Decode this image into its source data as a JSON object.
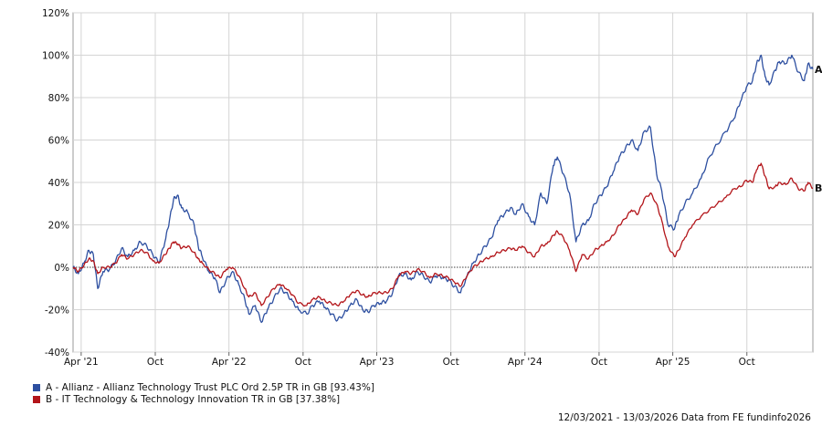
{
  "chart_data": {
    "type": "line",
    "ylim": [
      -40,
      120
    ],
    "y_ticks": [
      -40,
      -20,
      0,
      20,
      40,
      60,
      80,
      100,
      120
    ],
    "y_tick_labels": [
      "-40%",
      "-20%",
      "0%",
      "20%",
      "40%",
      "60%",
      "80%",
      "100%",
      "120%"
    ],
    "xlim": [
      "2021-03-12",
      "2026-03-13"
    ],
    "x_ticks": [
      "2021-04-01",
      "2021-10-01",
      "2022-04-01",
      "2022-10-01",
      "2023-04-01",
      "2023-10-01",
      "2024-04-01",
      "2024-10-01",
      "2025-04-01",
      "2025-10-01"
    ],
    "x_tick_labels": [
      "Apr '21",
      "Oct",
      "Apr '22",
      "Oct",
      "Apr '23",
      "Oct",
      "Apr '24",
      "Oct",
      "Apr '25",
      "Oct"
    ],
    "grid": true,
    "zero_line": "dotted",
    "legend_position": "bottom-left",
    "series": [
      {
        "name": "A - Allianz - Allianz Technology Trust PLC Ord 2.5P TR in GB [93.43%]",
        "end_label": "A",
        "color": "#2d4fa0",
        "points": [
          [
            "2021-03-12",
            0
          ],
          [
            "2021-03-25",
            -3
          ],
          [
            "2021-04-08",
            2
          ],
          [
            "2021-04-20",
            8
          ],
          [
            "2021-05-01",
            6
          ],
          [
            "2021-05-12",
            -10
          ],
          [
            "2021-05-25",
            -2
          ],
          [
            "2021-06-10",
            -1
          ],
          [
            "2021-06-25",
            3
          ],
          [
            "2021-07-10",
            9
          ],
          [
            "2021-07-25",
            5
          ],
          [
            "2021-08-10",
            8
          ],
          [
            "2021-08-25",
            12
          ],
          [
            "2021-09-10",
            10
          ],
          [
            "2021-09-25",
            6
          ],
          [
            "2021-10-10",
            2
          ],
          [
            "2021-10-25",
            12
          ],
          [
            "2021-11-05",
            22
          ],
          [
            "2021-11-15",
            32
          ],
          [
            "2021-11-25",
            34
          ],
          [
            "2021-12-05",
            28
          ],
          [
            "2021-12-20",
            26
          ],
          [
            "2022-01-05",
            20
          ],
          [
            "2022-01-15",
            10
          ],
          [
            "2022-01-25",
            5
          ],
          [
            "2022-02-10",
            -2
          ],
          [
            "2022-02-25",
            -5
          ],
          [
            "2022-03-10",
            -12
          ],
          [
            "2022-03-25",
            -6
          ],
          [
            "2022-04-10",
            -2
          ],
          [
            "2022-04-25",
            -8
          ],
          [
            "2022-05-10",
            -15
          ],
          [
            "2022-05-20",
            -22
          ],
          [
            "2022-06-05",
            -18
          ],
          [
            "2022-06-20",
            -26
          ],
          [
            "2022-07-05",
            -20
          ],
          [
            "2022-07-20",
            -15
          ],
          [
            "2022-08-05",
            -10
          ],
          [
            "2022-08-20",
            -12
          ],
          [
            "2022-09-05",
            -16
          ],
          [
            "2022-09-20",
            -20
          ],
          [
            "2022-10-10",
            -22
          ],
          [
            "2022-10-25",
            -18
          ],
          [
            "2022-11-10",
            -16
          ],
          [
            "2022-11-25",
            -19
          ],
          [
            "2022-12-10",
            -22
          ],
          [
            "2022-12-25",
            -25
          ],
          [
            "2023-01-10",
            -22
          ],
          [
            "2023-01-25",
            -18
          ],
          [
            "2023-02-10",
            -15
          ],
          [
            "2023-02-25",
            -20
          ],
          [
            "2023-03-10",
            -21
          ],
          [
            "2023-03-25",
            -18
          ],
          [
            "2023-04-10",
            -17
          ],
          [
            "2023-04-25",
            -16
          ],
          [
            "2023-05-10",
            -12
          ],
          [
            "2023-05-25",
            -4
          ],
          [
            "2023-06-10",
            -3
          ],
          [
            "2023-06-25",
            -6
          ],
          [
            "2023-07-10",
            -2
          ],
          [
            "2023-07-25",
            -4
          ],
          [
            "2023-08-10",
            -7
          ],
          [
            "2023-08-25",
            -4
          ],
          [
            "2023-09-10",
            -5
          ],
          [
            "2023-09-25",
            -6
          ],
          [
            "2023-10-10",
            -9
          ],
          [
            "2023-10-25",
            -12
          ],
          [
            "2023-11-10",
            -4
          ],
          [
            "2023-11-25",
            2
          ],
          [
            "2023-12-10",
            6
          ],
          [
            "2023-12-25",
            10
          ],
          [
            "2024-01-10",
            14
          ],
          [
            "2024-01-25",
            22
          ],
          [
            "2024-02-10",
            25
          ],
          [
            "2024-02-25",
            28
          ],
          [
            "2024-03-10",
            25
          ],
          [
            "2024-03-25",
            30
          ],
          [
            "2024-04-10",
            24
          ],
          [
            "2024-04-25",
            20
          ],
          [
            "2024-05-10",
            35
          ],
          [
            "2024-05-25",
            30
          ],
          [
            "2024-06-10",
            48
          ],
          [
            "2024-06-20",
            52
          ],
          [
            "2024-07-05",
            44
          ],
          [
            "2024-07-20",
            35
          ],
          [
            "2024-08-05",
            12
          ],
          [
            "2024-08-20",
            20
          ],
          [
            "2024-09-05",
            22
          ],
          [
            "2024-09-20",
            30
          ],
          [
            "2024-10-05",
            34
          ],
          [
            "2024-10-20",
            38
          ],
          [
            "2024-11-05",
            45
          ],
          [
            "2024-11-20",
            52
          ],
          [
            "2024-12-05",
            56
          ],
          [
            "2024-12-20",
            60
          ],
          [
            "2025-01-05",
            55
          ],
          [
            "2025-01-20",
            64
          ],
          [
            "2025-02-05",
            66
          ],
          [
            "2025-02-20",
            44
          ],
          [
            "2025-03-05",
            36
          ],
          [
            "2025-03-20",
            20
          ],
          [
            "2025-04-05",
            18
          ],
          [
            "2025-04-15",
            24
          ],
          [
            "2025-05-01",
            30
          ],
          [
            "2025-05-20",
            35
          ],
          [
            "2025-06-10",
            42
          ],
          [
            "2025-06-30",
            52
          ],
          [
            "2025-07-20",
            58
          ],
          [
            "2025-08-10",
            64
          ],
          [
            "2025-08-30",
            70
          ],
          [
            "2025-09-15",
            78
          ],
          [
            "2025-09-30",
            85
          ],
          [
            "2025-10-15",
            88
          ],
          [
            "2025-10-25",
            96
          ],
          [
            "2025-11-05",
            100
          ],
          [
            "2025-11-15",
            90
          ],
          [
            "2025-11-25",
            86
          ],
          [
            "2025-12-10",
            93
          ],
          [
            "2025-12-20",
            97
          ],
          [
            "2026-01-05",
            96
          ],
          [
            "2026-01-20",
            100
          ],
          [
            "2026-02-05",
            92
          ],
          [
            "2026-02-20",
            88
          ],
          [
            "2026-03-01",
            96
          ],
          [
            "2026-03-13",
            93.43
          ]
        ]
      },
      {
        "name": "B - IT Technology & Technology Innovation TR in GB [37.38%]",
        "end_label": "B",
        "color": "#b3151a",
        "points": [
          [
            "2021-03-12",
            0
          ],
          [
            "2021-03-25",
            -2
          ],
          [
            "2021-04-08",
            1
          ],
          [
            "2021-04-20",
            4
          ],
          [
            "2021-05-01",
            3
          ],
          [
            "2021-05-12",
            -3
          ],
          [
            "2021-05-25",
            0
          ],
          [
            "2021-06-10",
            0
          ],
          [
            "2021-06-25",
            2
          ],
          [
            "2021-07-10",
            6
          ],
          [
            "2021-07-25",
            4
          ],
          [
            "2021-08-10",
            6
          ],
          [
            "2021-08-25",
            8
          ],
          [
            "2021-09-10",
            7
          ],
          [
            "2021-09-25",
            3
          ],
          [
            "2021-10-10",
            2
          ],
          [
            "2021-10-25",
            6
          ],
          [
            "2021-11-05",
            9
          ],
          [
            "2021-11-15",
            12
          ],
          [
            "2021-11-25",
            11
          ],
          [
            "2021-12-05",
            9
          ],
          [
            "2021-12-20",
            10
          ],
          [
            "2022-01-05",
            7
          ],
          [
            "2022-01-15",
            4
          ],
          [
            "2022-01-25",
            2
          ],
          [
            "2022-02-10",
            -1
          ],
          [
            "2022-02-25",
            -3
          ],
          [
            "2022-03-10",
            -5
          ],
          [
            "2022-03-25",
            -1
          ],
          [
            "2022-04-10",
            0
          ],
          [
            "2022-04-25",
            -4
          ],
          [
            "2022-05-10",
            -10
          ],
          [
            "2022-05-20",
            -14
          ],
          [
            "2022-06-05",
            -12
          ],
          [
            "2022-06-20",
            -18
          ],
          [
            "2022-07-05",
            -14
          ],
          [
            "2022-07-20",
            -10
          ],
          [
            "2022-08-05",
            -8
          ],
          [
            "2022-08-20",
            -10
          ],
          [
            "2022-09-05",
            -13
          ],
          [
            "2022-09-20",
            -17
          ],
          [
            "2022-10-10",
            -18
          ],
          [
            "2022-10-25",
            -15
          ],
          [
            "2022-11-10",
            -14
          ],
          [
            "2022-11-25",
            -16
          ],
          [
            "2022-12-10",
            -17
          ],
          [
            "2022-12-25",
            -18
          ],
          [
            "2023-01-10",
            -16
          ],
          [
            "2023-01-25",
            -13
          ],
          [
            "2023-02-10",
            -11
          ],
          [
            "2023-02-25",
            -13
          ],
          [
            "2023-03-10",
            -14
          ],
          [
            "2023-03-25",
            -12
          ],
          [
            "2023-04-10",
            -12
          ],
          [
            "2023-04-25",
            -12
          ],
          [
            "2023-05-10",
            -10
          ],
          [
            "2023-05-25",
            -4
          ],
          [
            "2023-06-10",
            -2
          ],
          [
            "2023-06-25",
            -3
          ],
          [
            "2023-07-10",
            -1
          ],
          [
            "2023-07-25",
            -2
          ],
          [
            "2023-08-10",
            -5
          ],
          [
            "2023-08-25",
            -3
          ],
          [
            "2023-09-10",
            -4
          ],
          [
            "2023-09-25",
            -5
          ],
          [
            "2023-10-10",
            -7
          ],
          [
            "2023-10-25",
            -9
          ],
          [
            "2023-11-10",
            -4
          ],
          [
            "2023-11-25",
            0
          ],
          [
            "2023-12-10",
            2
          ],
          [
            "2023-12-25",
            4
          ],
          [
            "2024-01-10",
            5
          ],
          [
            "2024-01-25",
            7
          ],
          [
            "2024-02-10",
            8
          ],
          [
            "2024-02-25",
            9
          ],
          [
            "2024-03-10",
            8
          ],
          [
            "2024-03-25",
            10
          ],
          [
            "2024-04-10",
            7
          ],
          [
            "2024-04-25",
            5
          ],
          [
            "2024-05-10",
            10
          ],
          [
            "2024-05-25",
            11
          ],
          [
            "2024-06-10",
            15
          ],
          [
            "2024-06-20",
            17
          ],
          [
            "2024-07-05",
            14
          ],
          [
            "2024-07-20",
            8
          ],
          [
            "2024-08-05",
            -2
          ],
          [
            "2024-08-20",
            6
          ],
          [
            "2024-09-05",
            4
          ],
          [
            "2024-09-20",
            8
          ],
          [
            "2024-10-05",
            10
          ],
          [
            "2024-10-20",
            12
          ],
          [
            "2024-11-05",
            15
          ],
          [
            "2024-11-20",
            20
          ],
          [
            "2024-12-05",
            23
          ],
          [
            "2024-12-20",
            27
          ],
          [
            "2025-01-05",
            25
          ],
          [
            "2025-01-20",
            32
          ],
          [
            "2025-02-05",
            35
          ],
          [
            "2025-02-20",
            30
          ],
          [
            "2025-03-05",
            22
          ],
          [
            "2025-03-20",
            10
          ],
          [
            "2025-04-05",
            5
          ],
          [
            "2025-04-15",
            8
          ],
          [
            "2025-05-01",
            14
          ],
          [
            "2025-05-20",
            20
          ],
          [
            "2025-06-10",
            24
          ],
          [
            "2025-06-30",
            27
          ],
          [
            "2025-07-20",
            30
          ],
          [
            "2025-08-10",
            33
          ],
          [
            "2025-08-30",
            37
          ],
          [
            "2025-09-15",
            38
          ],
          [
            "2025-09-30",
            41
          ],
          [
            "2025-10-15",
            40
          ],
          [
            "2025-10-25",
            46
          ],
          [
            "2025-11-05",
            49
          ],
          [
            "2025-11-15",
            43
          ],
          [
            "2025-11-25",
            37
          ],
          [
            "2025-12-10",
            38
          ],
          [
            "2025-12-20",
            40
          ],
          [
            "2026-01-05",
            39
          ],
          [
            "2026-01-20",
            42
          ],
          [
            "2026-02-05",
            37
          ],
          [
            "2026-02-20",
            36
          ],
          [
            "2026-03-01",
            40
          ],
          [
            "2026-03-13",
            37.38
          ]
        ]
      }
    ]
  },
  "footer": {
    "text": "12/03/2021 - 13/03/2026 Data from FE fundinfo2026"
  }
}
